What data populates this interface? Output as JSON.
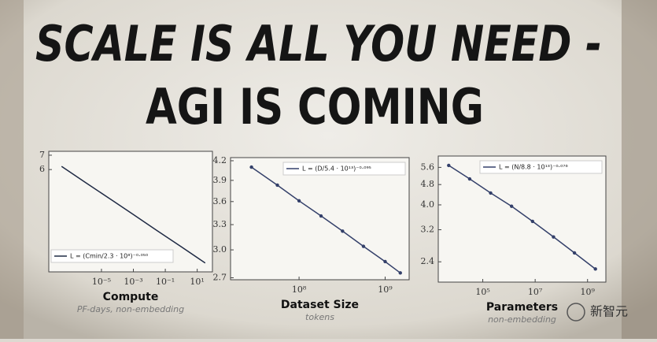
{
  "header": {
    "line1": "SCALE IS ALL YOU NEED -",
    "line2": "AGI IS COMING"
  },
  "watermark": "新智元",
  "chart_data": [
    {
      "type": "line",
      "log_x": true,
      "log_y": true,
      "markers": false,
      "legend": "lower left",
      "xlabel": "Compute",
      "xsublabel": "PF-days, non-embedding",
      "x": [
        3.16e-08,
        1e-06,
        3.16e-05,
        0.001,
        0.0316,
        1,
        31.6
      ],
      "series": [
        {
          "name": "L = (Cmin/2.3 · 10⁸)⁻⁰·⁰⁵⁰",
          "color": "#1f2a44",
          "values": [
            6.21,
            5.22,
            4.4,
            3.7,
            3.11,
            2.62,
            2.2
          ]
        }
      ],
      "xlim": [
        5e-09,
        90
      ],
      "ylim": [
        2,
        7.3
      ],
      "xticks": [
        {
          "value": 1e-05,
          "label": "10⁻⁵"
        },
        {
          "value": 0.001,
          "label": "10⁻³"
        },
        {
          "value": 0.1,
          "label": "10⁻¹"
        },
        {
          "value": 10,
          "label": "10¹"
        }
      ],
      "yticks": [
        6,
        7
      ]
    },
    {
      "type": "line",
      "log_x": true,
      "log_y": true,
      "markers": true,
      "legend": "upper right",
      "xlabel": "Dataset Size",
      "xsublabel": "tokens",
      "x": [
        28000000.0,
        56000000.0,
        100000000.0,
        180000000.0,
        320000000.0,
        560000000.0,
        1000000000.0,
        1500000000.0
      ],
      "series": [
        {
          "name": "L = (D/5.4 · 10¹³)⁻⁰·⁰⁹⁵",
          "color": "#34406a",
          "values": [
            4.1,
            3.83,
            3.61,
            3.41,
            3.22,
            3.04,
            2.87,
            2.75
          ]
        }
      ],
      "xlim": [
        16000000.0,
        1900000000.0
      ],
      "ylim": [
        2.68,
        4.25
      ],
      "xticks": [
        {
          "value": 100000000.0,
          "label": "10⁸"
        },
        {
          "value": 1000000000.0,
          "label": "10⁹"
        }
      ],
      "yticks": [
        2.7,
        {
          "value": 3,
          "label": "3.0"
        },
        3.3,
        3.6,
        3.9,
        4.2
      ]
    },
    {
      "type": "line",
      "log_x": true,
      "log_y": true,
      "markers": true,
      "legend": "upper right",
      "xlabel": "Parameters",
      "xsublabel": "non-embedding",
      "x": [
        5012,
        31623,
        199526,
        1258925,
        7943282,
        50118723,
        316227766,
        1995262315
      ],
      "series": [
        {
          "name": "L = (N/8.8 · 10¹³)⁻⁰·⁰⁷⁶",
          "color": "#34406a",
          "values": [
            5.7,
            5.05,
            4.45,
            3.95,
            3.45,
            3.0,
            2.6,
            2.25
          ]
        }
      ],
      "xlim": [
        2000,
        5000000000.0
      ],
      "ylim": [
        2.0,
        6.2
      ],
      "xticks": [
        {
          "value": 100000,
          "label": "10⁵"
        },
        {
          "value": 10000000,
          "label": "10⁷"
        },
        {
          "value": 1000000000,
          "label": "10⁹"
        }
      ],
      "yticks": [
        2.4,
        3.2,
        {
          "value": 4,
          "label": "4.0"
        },
        4.8,
        5.6
      ]
    }
  ]
}
